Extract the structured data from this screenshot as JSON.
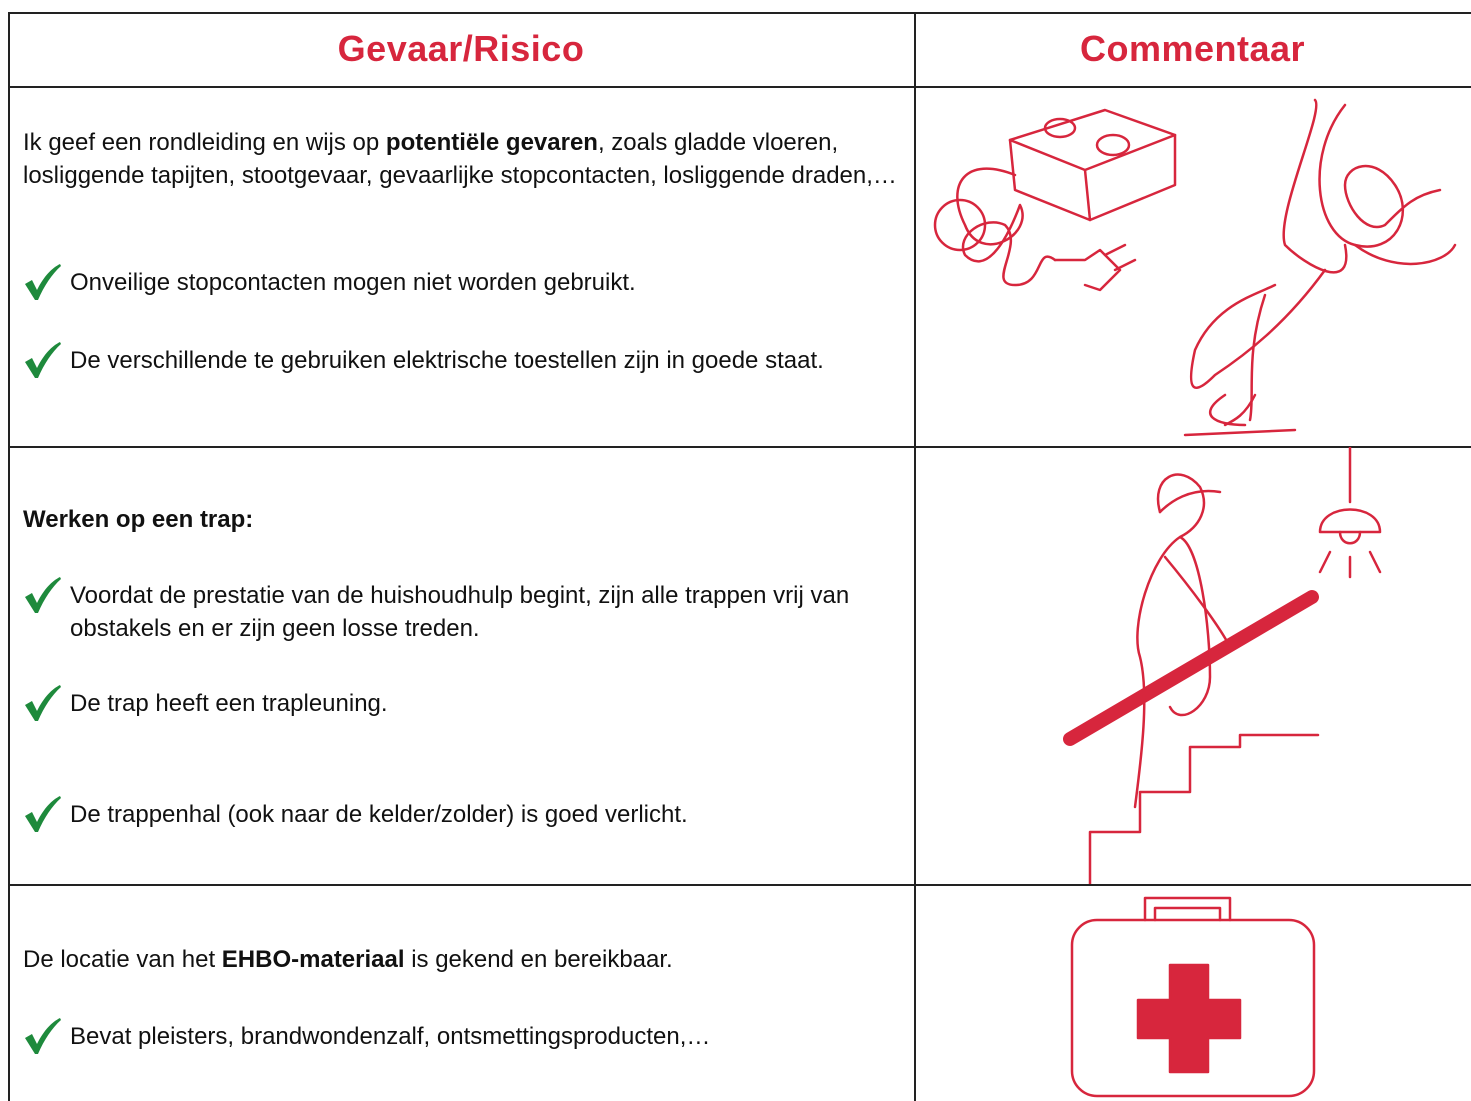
{
  "table": {
    "header": [
      "Gevaar/Risico",
      "Commentaar"
    ],
    "rows": [
      {
        "intro": [
          {
            "text": "Ik geef een rondleiding en wijs op ",
            "bold": false
          },
          {
            "text": "potentiële gevaren",
            "bold": true
          },
          {
            "text": ", zoals gladde vloeren, losliggende tapijten, stootgevaar, gevaarlijke stopcontacten, losliggende draden,…",
            "bold": false
          }
        ],
        "items": [
          "Onveilige stopcontacten mogen niet worden gebruikt.",
          "De verschillende te gebruiken elektrische toestellen zijn in goede staat."
        ]
      },
      {
        "intro": [
          {
            "text": "Werken op een trap:",
            "bold": true
          }
        ],
        "items": [
          "Voordat de prestatie van de huishoudhulp begint, zijn alle trappen vrij van obstakels en er zijn geen losse treden.",
          "De trap heeft een trapleuning.",
          "De trappenhal (ook naar de kelder/zolder) is goed verlicht."
        ]
      },
      {
        "intro": [
          {
            "text": "De locatie van het ",
            "bold": false
          },
          {
            "text": "EHBO-materiaal",
            "bold": true
          },
          {
            "text": " is gekend en bereikbaar.",
            "bold": false
          }
        ],
        "items": [
          "Bevat pleisters, brandwondenzalf, ontsmettingsproducten,…"
        ]
      }
    ]
  }
}
